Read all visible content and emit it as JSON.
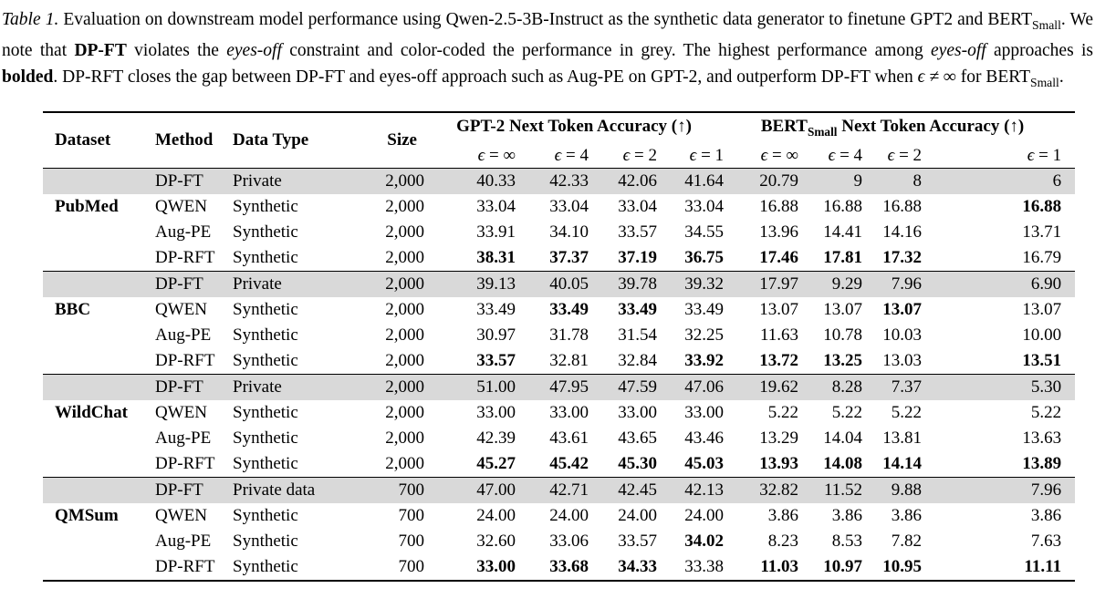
{
  "colors": {
    "background": "#ffffff",
    "text": "#000000",
    "grey_row": "#d9d9d9"
  },
  "caption": {
    "segments": [
      {
        "text": "Table 1.",
        "style": "italic"
      },
      {
        "text": " Evaluation on downstream model performance using Qwen-2.5-3B-Instruct as the synthetic data generator to finetune GPT2 and BERT",
        "style": "normal"
      },
      {
        "text": "Small",
        "style": "subscript"
      },
      {
        "text": ". We note that ",
        "style": "normal"
      },
      {
        "text": "DP-FT",
        "style": "bold"
      },
      {
        "text": " violates the ",
        "style": "normal"
      },
      {
        "text": "eyes-off",
        "style": "italic"
      },
      {
        "text": " constraint and color-coded the performance in grey. The highest performance among ",
        "style": "normal"
      },
      {
        "text": "eyes-off",
        "style": "italic"
      },
      {
        "text": " approaches is ",
        "style": "normal"
      },
      {
        "text": "bolded",
        "style": "bold"
      },
      {
        "text": ". DP-RFT closes the gap between DP-FT and eyes-off approach such as Aug-PE on GPT-2, and outperform DP-FT when ",
        "style": "normal"
      },
      {
        "text": "ϵ ≠ ∞",
        "style": "math"
      },
      {
        "text": " for BERT",
        "style": "normal"
      },
      {
        "text": "Small",
        "style": "subscript"
      },
      {
        "text": ".",
        "style": "normal"
      }
    ]
  },
  "table": {
    "grey_row_color": "#d9d9d9",
    "header": {
      "dataset": "Dataset",
      "method": "Method",
      "data_type": "Data Type",
      "size": "Size",
      "groups": [
        {
          "name_main": "GPT-2",
          "name_sub": "",
          "name_rest": " Next Token Accuracy (↑)",
          "subcols": [
            {
              "sym": "ϵ",
              "rel": "= ∞"
            },
            {
              "sym": "ϵ",
              "rel": "= 4"
            },
            {
              "sym": "ϵ",
              "rel": "= 2"
            },
            {
              "sym": "ϵ",
              "rel": "= 1"
            }
          ]
        },
        {
          "name_main": "BERT",
          "name_sub": "Small",
          "name_rest": " Next Token Accuracy (↑)",
          "subcols": [
            {
              "sym": "ϵ",
              "rel": "= ∞"
            },
            {
              "sym": "ϵ",
              "rel": "= 4"
            },
            {
              "sym": "ϵ",
              "rel": "= 2"
            },
            {
              "sym": "ϵ",
              "rel": "= 1"
            }
          ]
        }
      ]
    },
    "blocks": [
      {
        "dataset": "PubMed",
        "rows": [
          {
            "method": "DP-FT",
            "data_type": "Private",
            "size": "2,000",
            "grey": true,
            "values": [
              "40.33",
              "42.33",
              "42.06",
              "41.64",
              "20.79",
              "9",
              "8",
              "6"
            ],
            "bold": [
              0,
              0,
              0,
              0,
              0,
              0,
              0,
              0
            ]
          },
          {
            "method": "QWEN",
            "data_type": "Synthetic",
            "size": "2,000",
            "grey": false,
            "values": [
              "33.04",
              "33.04",
              "33.04",
              "33.04",
              "16.88",
              "16.88",
              "16.88",
              "16.88"
            ],
            "bold": [
              0,
              0,
              0,
              0,
              0,
              0,
              0,
              1
            ]
          },
          {
            "method": "Aug-PE",
            "data_type": "Synthetic",
            "size": "2,000",
            "grey": false,
            "values": [
              "33.91",
              "34.10",
              "33.57",
              "34.55",
              "13.96",
              "14.41",
              "14.16",
              "13.71"
            ],
            "bold": [
              0,
              0,
              0,
              0,
              0,
              0,
              0,
              0
            ]
          },
          {
            "method": "DP-RFT",
            "data_type": "Synthetic",
            "size": "2,000",
            "grey": false,
            "values": [
              "38.31",
              "37.37",
              "37.19",
              "36.75",
              "17.46",
              "17.81",
              "17.32",
              "16.79"
            ],
            "bold": [
              1,
              1,
              1,
              1,
              1,
              1,
              1,
              0
            ]
          }
        ]
      },
      {
        "dataset": "BBC",
        "rows": [
          {
            "method": "DP-FT",
            "data_type": "Private",
            "size": "2,000",
            "grey": true,
            "values": [
              "39.13",
              "40.05",
              "39.78",
              "39.32",
              "17.97",
              "9.29",
              "7.96",
              "6.90"
            ],
            "bold": [
              0,
              0,
              0,
              0,
              0,
              0,
              0,
              0
            ]
          },
          {
            "method": "QWEN",
            "data_type": "Synthetic",
            "size": "2,000",
            "grey": false,
            "values": [
              "33.49",
              "33.49",
              "33.49",
              "33.49",
              "13.07",
              "13.07",
              "13.07",
              "13.07"
            ],
            "bold": [
              0,
              1,
              1,
              0,
              0,
              0,
              1,
              0
            ]
          },
          {
            "method": "Aug-PE",
            "data_type": "Synthetic",
            "size": "2,000",
            "grey": false,
            "values": [
              "30.97",
              "31.78",
              "31.54",
              "32.25",
              "11.63",
              "10.78",
              "10.03",
              "10.00"
            ],
            "bold": [
              0,
              0,
              0,
              0,
              0,
              0,
              0,
              0
            ]
          },
          {
            "method": "DP-RFT",
            "data_type": "Synthetic",
            "size": "2,000",
            "grey": false,
            "values": [
              "33.57",
              "32.81",
              "32.84",
              "33.92",
              "13.72",
              "13.25",
              "13.03",
              "13.51"
            ],
            "bold": [
              1,
              0,
              0,
              1,
              1,
              1,
              0,
              1
            ]
          }
        ]
      },
      {
        "dataset": "WildChat",
        "rows": [
          {
            "method": "DP-FT",
            "data_type": "Private",
            "size": "2,000",
            "grey": true,
            "values": [
              "51.00",
              "47.95",
              "47.59",
              "47.06",
              "19.62",
              "8.28",
              "7.37",
              "5.30"
            ],
            "bold": [
              0,
              0,
              0,
              0,
              0,
              0,
              0,
              0
            ]
          },
          {
            "method": "QWEN",
            "data_type": "Synthetic",
            "size": "2,000",
            "grey": false,
            "values": [
              "33.00",
              "33.00",
              "33.00",
              "33.00",
              "5.22",
              "5.22",
              "5.22",
              "5.22"
            ],
            "bold": [
              0,
              0,
              0,
              0,
              0,
              0,
              0,
              0
            ]
          },
          {
            "method": "Aug-PE",
            "data_type": "Synthetic",
            "size": "2,000",
            "grey": false,
            "values": [
              "42.39",
              "43.61",
              "43.65",
              "43.46",
              "13.29",
              "14.04",
              "13.81",
              "13.63"
            ],
            "bold": [
              0,
              0,
              0,
              0,
              0,
              0,
              0,
              0
            ]
          },
          {
            "method": "DP-RFT",
            "data_type": "Synthetic",
            "size": "2,000",
            "grey": false,
            "values": [
              "45.27",
              "45.42",
              "45.30",
              "45.03",
              "13.93",
              "14.08",
              "14.14",
              "13.89"
            ],
            "bold": [
              1,
              1,
              1,
              1,
              1,
              1,
              1,
              1
            ]
          }
        ]
      },
      {
        "dataset": "QMSum",
        "rows": [
          {
            "method": "DP-FT",
            "data_type": "Private data",
            "size": "700",
            "grey": true,
            "values": [
              "47.00",
              "42.71",
              "42.45",
              "42.13",
              "32.82",
              "11.52",
              "9.88",
              "7.96"
            ],
            "bold": [
              0,
              0,
              0,
              0,
              0,
              0,
              0,
              0
            ]
          },
          {
            "method": "QWEN",
            "data_type": "Synthetic",
            "size": "700",
            "grey": false,
            "values": [
              "24.00",
              "24.00",
              "24.00",
              "24.00",
              "3.86",
              "3.86",
              "3.86",
              "3.86"
            ],
            "bold": [
              0,
              0,
              0,
              0,
              0,
              0,
              0,
              0
            ]
          },
          {
            "method": "Aug-PE",
            "data_type": "Synthetic",
            "size": "700",
            "grey": false,
            "values": [
              "32.60",
              "33.06",
              "33.57",
              "34.02",
              "8.23",
              "8.53",
              "7.82",
              "7.63"
            ],
            "bold": [
              0,
              0,
              0,
              1,
              0,
              0,
              0,
              0
            ]
          },
          {
            "method": "DP-RFT",
            "data_type": "Synthetic",
            "size": "700",
            "grey": false,
            "values": [
              "33.00",
              "33.68",
              "34.33",
              "33.38",
              "11.03",
              "10.97",
              "10.95",
              "11.11"
            ],
            "bold": [
              1,
              1,
              1,
              0,
              1,
              1,
              1,
              1
            ]
          }
        ]
      }
    ]
  }
}
